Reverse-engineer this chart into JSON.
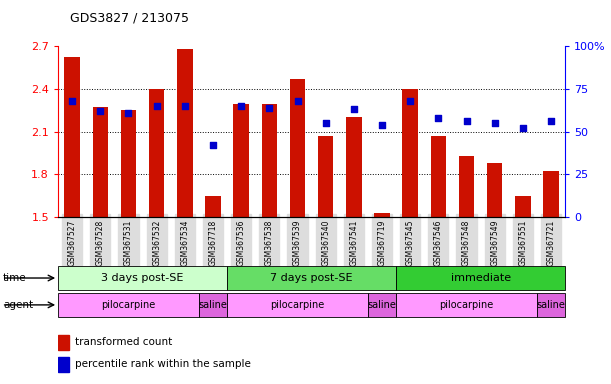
{
  "title": "GDS3827 / 213075",
  "samples": [
    "GSM367527",
    "GSM367528",
    "GSM367531",
    "GSM367532",
    "GSM367534",
    "GSM367718",
    "GSM367536",
    "GSM367538",
    "GSM367539",
    "GSM367540",
    "GSM367541",
    "GSM367719",
    "GSM367545",
    "GSM367546",
    "GSM367548",
    "GSM367549",
    "GSM367551",
    "GSM367721"
  ],
  "bar_values": [
    2.62,
    2.27,
    2.25,
    2.4,
    2.68,
    1.65,
    2.29,
    2.29,
    2.47,
    2.07,
    2.2,
    1.53,
    2.4,
    2.07,
    1.93,
    1.88,
    1.65,
    1.82
  ],
  "dot_values": [
    68,
    62,
    61,
    65,
    65,
    42,
    65,
    64,
    68,
    55,
    63,
    54,
    68,
    58,
    56,
    55,
    52,
    56
  ],
  "bar_color": "#cc1100",
  "dot_color": "#0000cc",
  "ylim_left": [
    1.5,
    2.7
  ],
  "ylim_right": [
    0,
    100
  ],
  "yticks_left": [
    1.5,
    1.8,
    2.1,
    2.4,
    2.7
  ],
  "yticks_right": [
    0,
    25,
    50,
    75,
    100
  ],
  "ytick_labels_right": [
    "0",
    "25",
    "50",
    "75",
    "100%"
  ],
  "bar_bottom": 1.5,
  "groups": [
    {
      "label": "3 days post-SE",
      "start": 0,
      "end": 5,
      "color": "#ccffcc"
    },
    {
      "label": "7 days post-SE",
      "start": 6,
      "end": 11,
      "color": "#66dd66"
    },
    {
      "label": "immediate",
      "start": 12,
      "end": 17,
      "color": "#33cc33"
    }
  ],
  "agents": [
    {
      "label": "pilocarpine",
      "start": 0,
      "end": 4,
      "color": "#ff99ff"
    },
    {
      "label": "saline",
      "start": 5,
      "end": 5,
      "color": "#dd66dd"
    },
    {
      "label": "pilocarpine",
      "start": 6,
      "end": 10,
      "color": "#ff99ff"
    },
    {
      "label": "saline",
      "start": 11,
      "end": 11,
      "color": "#dd66dd"
    },
    {
      "label": "pilocarpine",
      "start": 12,
      "end": 16,
      "color": "#ff99ff"
    },
    {
      "label": "saline",
      "start": 17,
      "end": 17,
      "color": "#dd66dd"
    }
  ],
  "time_label": "time",
  "agent_label": "agent",
  "legend_bar": "transformed count",
  "legend_dot": "percentile rank within the sample",
  "bg_color": "#ffffff",
  "plot_bg": "#ffffff",
  "label_bg": "#dddddd"
}
